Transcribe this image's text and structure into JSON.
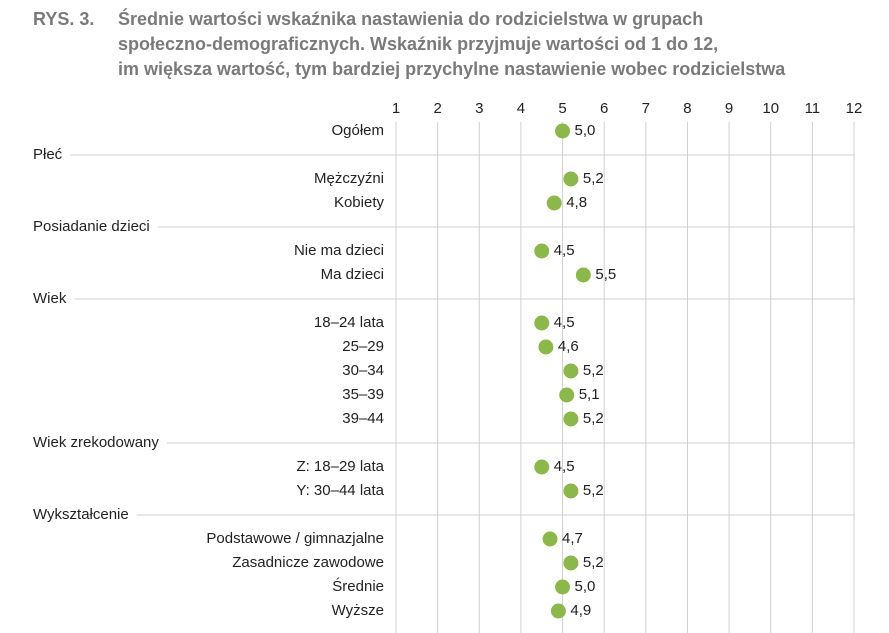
{
  "chart_data": {
    "type": "dot",
    "figure_label": "RYS. 3.",
    "title_lines": [
      "Średnie wartości wskaźnika nastawienia do rodzicielstwa w grupach",
      "społeczno-demograficznych. Wskaźnik przyjmuje wartości od 1 do 12,",
      "im większa wartość, tym bardziej przychylne nastawienie wobec rodzicielstwa"
    ],
    "xlim": [
      1,
      12
    ],
    "xticks": [
      1,
      2,
      3,
      4,
      5,
      6,
      7,
      8,
      9,
      10,
      11,
      12
    ],
    "grid": true,
    "color": "#8cb84b",
    "groups": [
      {
        "categories": [
          "Ogółem"
        ],
        "values": [
          5.0
        ],
        "value_labels": [
          "5,0"
        ]
      },
      {
        "name": "Płeć",
        "categories": [
          "Mężczyźni",
          "Kobiety"
        ],
        "values": [
          5.2,
          4.8
        ],
        "value_labels": [
          "5,2",
          "4,8"
        ]
      },
      {
        "name": "Posiadanie dzieci",
        "categories": [
          "Nie ma dzieci",
          "Ma dzieci"
        ],
        "values": [
          4.5,
          5.5
        ],
        "value_labels": [
          "4,5",
          "5,5"
        ]
      },
      {
        "name": "Wiek",
        "categories": [
          "18–24 lata",
          "25–29",
          "30–34",
          "35–39",
          "39–44"
        ],
        "values": [
          4.5,
          4.6,
          5.2,
          5.1,
          5.2
        ],
        "value_labels": [
          "4,5",
          "4,6",
          "5,2",
          "5,1",
          "5,2"
        ]
      },
      {
        "name": "Wiek zrekodowany",
        "categories": [
          "Z: 18–29 lata",
          "Y: 30–44 lata"
        ],
        "values": [
          4.5,
          5.2
        ],
        "value_labels": [
          "4,5",
          "5,2"
        ]
      },
      {
        "name": "Wykształcenie",
        "categories": [
          "Podstawowe / gimnazjalne",
          "Zasadnicze zawodowe",
          "Średnie",
          "Wyższe"
        ],
        "values": [
          4.7,
          5.2,
          5.0,
          4.9
        ],
        "value_labels": [
          "4,7",
          "5,2",
          "5,0",
          "4,9"
        ]
      }
    ]
  }
}
